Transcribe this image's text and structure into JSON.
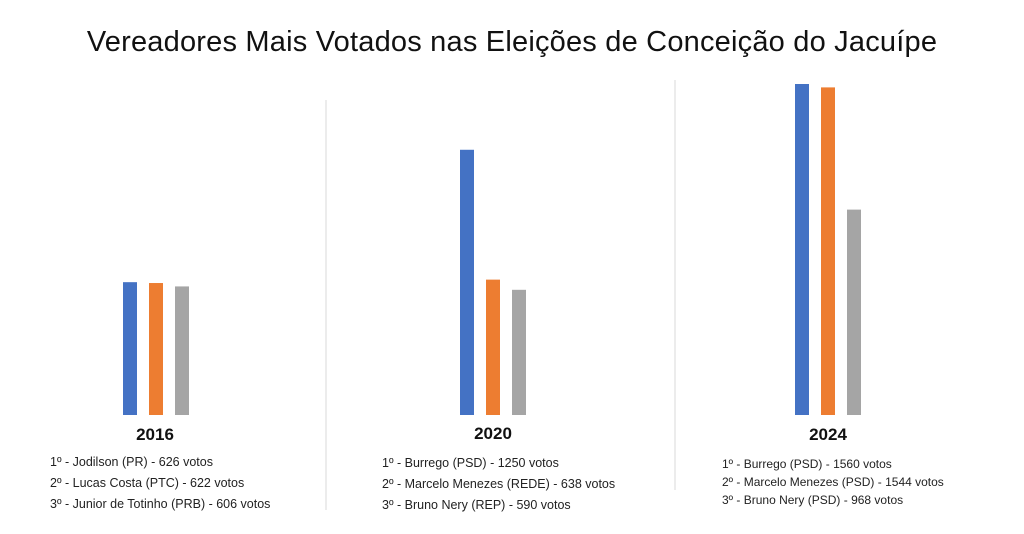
{
  "chart_data": {
    "type": "bar",
    "title": "Vereadores Mais Votados nas Eleições de Conceição do Jacuípe",
    "ylim": [
      0,
      1600
    ],
    "series_colors": [
      "#4472C4",
      "#ED7D31",
      "#A5A5A5"
    ],
    "groups": [
      {
        "year": "2016",
        "values": [
          626,
          622,
          606
        ],
        "legend": [
          "1º - Jodilson (PR) - 626 votos",
          "2º - Lucas Costa (PTC) - 622 votos",
          "3º - Junior de Totinho (PRB) - 606 votos"
        ]
      },
      {
        "year": "2020",
        "values": [
          1250,
          638,
          590
        ],
        "legend": [
          "1º - Burrego (PSD) - 1250 votos",
          "2º - Marcelo Menezes (REDE) - 638 votos",
          "3º - Bruno Nery (REP) - 590 votos"
        ]
      },
      {
        "year": "2024",
        "values": [
          1560,
          1544,
          968
        ],
        "legend": [
          "1º - Burrego (PSD) - 1560 votos",
          "2º - Marcelo Menezes (PSD) - 1544 votos",
          "3º - Bruno Nery (PSD) - 968 votos"
        ]
      }
    ]
  }
}
